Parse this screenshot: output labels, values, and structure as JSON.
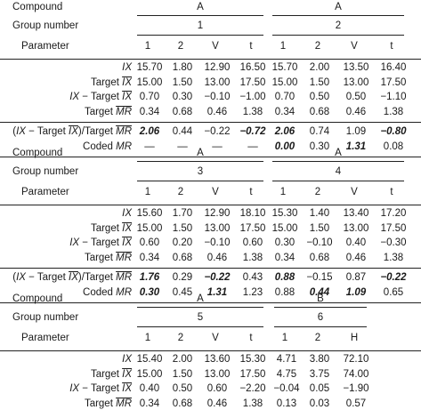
{
  "labels": {
    "compound": "Compound",
    "group_number": "Group number",
    "parameter": "Parameter"
  },
  "blocks": [
    {
      "groups": [
        {
          "compound": "A",
          "number": "1",
          "params": [
            "1",
            "2",
            "V",
            "t"
          ]
        },
        {
          "compound": "A",
          "number": "2",
          "params": [
            "1",
            "2",
            "V",
            "t"
          ]
        }
      ],
      "rows": [
        {
          "label": "<i>IX</i>",
          "values": [
            "15.70",
            "1.80",
            "12.90",
            "16.50",
            "15.70",
            "2.00",
            "13.50",
            "16.40"
          ]
        },
        {
          "label": "Target <span class='ov'><i>IX</i></span>",
          "values": [
            "15.00",
            "1.50",
            "13.00",
            "17.50",
            "15.00",
            "1.50",
            "13.00",
            "17.50"
          ]
        },
        {
          "label": "<i>IX</i> − Target <span class='ov'><i>IX</i></span>",
          "values": [
            "0.70",
            "0.30",
            "−0.10",
            "−1.00",
            "0.70",
            "0.50",
            "0.50",
            "−1.10"
          ]
        },
        {
          "label": "Target <span class='ov'><i>MR</i></span>",
          "values": [
            "0.34",
            "0.68",
            "0.46",
            "1.38",
            "0.34",
            "0.68",
            "0.46",
            "1.38"
          ]
        },
        {
          "sep": true,
          "label": "(<i>IX</i> − Target <span class='ov'><i>IX</i></span>)/Target <span class='ov'><i>MR</i></span>",
          "values": [
            "2.06",
            "0.44",
            "−0.22",
            "−0.72",
            "2.06",
            "0.74",
            "1.09",
            "−0.80"
          ],
          "bold": [
            0,
            3,
            4,
            7
          ]
        },
        {
          "label": "Coded <i>MR</i>",
          "values": [
            "—",
            "—",
            "—",
            "—",
            "0.00",
            "0.30",
            "1.31",
            "0.08"
          ],
          "bold": [
            4,
            6
          ]
        }
      ]
    },
    {
      "groups": [
        {
          "compound": "A",
          "number": "3",
          "params": [
            "1",
            "2",
            "V",
            "t"
          ]
        },
        {
          "compound": "A",
          "number": "4",
          "params": [
            "1",
            "2",
            "V",
            "t"
          ]
        }
      ],
      "rows": [
        {
          "label": "<i>IX</i>",
          "values": [
            "15.60",
            "1.70",
            "12.90",
            "18.10",
            "15.30",
            "1.40",
            "13.40",
            "17.20"
          ]
        },
        {
          "label": "Target <span class='ov'><i>IX</i></span>",
          "values": [
            "15.00",
            "1.50",
            "13.00",
            "17.50",
            "15.00",
            "1.50",
            "13.00",
            "17.50"
          ]
        },
        {
          "label": "<i>IX</i> − Target <span class='ov'><i>IX</i></span>",
          "values": [
            "0.60",
            "0.20",
            "−0.10",
            "0.60",
            "0.30",
            "−0.10",
            "0.40",
            "−0.30"
          ]
        },
        {
          "label": "Target <span class='ov'><i>MR</i></span>",
          "values": [
            "0.34",
            "0.68",
            "0.46",
            "1.38",
            "0.34",
            "0.68",
            "0.46",
            "1.38"
          ]
        },
        {
          "sep": true,
          "label": "(<i>IX</i> − Target <span class='ov'><i>IX</i></span>)/Target <span class='ov'><i>MR</i></span>",
          "values": [
            "1.76",
            "0.29",
            "−0.22",
            "0.43",
            "0.88",
            "−0.15",
            "0.87",
            "−0.22"
          ],
          "bold": [
            0,
            2,
            4,
            7
          ]
        },
        {
          "label": "Coded <i>MR</i>",
          "values": [
            "0.30",
            "0.45",
            "1.31",
            "1.23",
            "0.88",
            "0.44",
            "1.09",
            "0.65"
          ],
          "bold": [
            0,
            2,
            5,
            6
          ]
        }
      ]
    },
    {
      "groups": [
        {
          "compound": "A",
          "number": "5",
          "params": [
            "1",
            "2",
            "V",
            "t"
          ]
        },
        {
          "compound": "B",
          "number": "6",
          "params": [
            "1",
            "2",
            "H"
          ]
        }
      ],
      "rows": [
        {
          "label": "<i>IX</i>",
          "values": [
            "15.40",
            "2.00",
            "13.60",
            "15.30",
            "4.71",
            "3.80",
            "72.10"
          ]
        },
        {
          "label": "Target <span class='ov'><i>IX</i></span>",
          "values": [
            "15.00",
            "1.50",
            "13.00",
            "17.50",
            "4.75",
            "3.75",
            "74.00"
          ]
        },
        {
          "label": "<i>IX</i> − Target <span class='ov'><i>IX</i></span>",
          "values": [
            "0.40",
            "0.50",
            "0.60",
            "−2.20",
            "−0.04",
            "0.05",
            "−1.90"
          ]
        },
        {
          "label": "Target <span class='ov'><i>MR</i></span>",
          "values": [
            "0.34",
            "0.68",
            "0.46",
            "1.38",
            "0.13",
            "0.03",
            "0.57"
          ]
        }
      ]
    }
  ]
}
